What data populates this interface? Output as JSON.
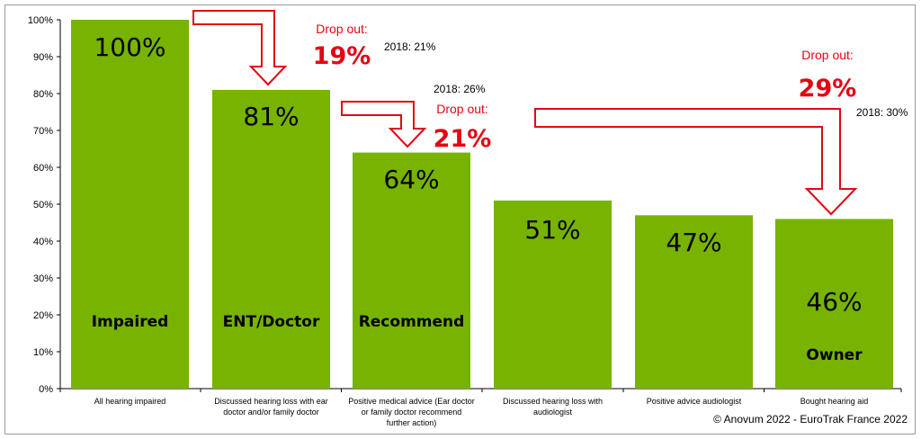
{
  "chart_data": {
    "type": "bar",
    "categories": [
      "All hearing impaired",
      "Discussed hearing loss with ear doctor and/or family doctor",
      "Positive medical advice (Ear doctor or family doctor recommend further action)",
      "Discussed hearing loss with audiologist",
      "Positive advice audiologist",
      "Bought hearing aid"
    ],
    "category_lines": [
      [
        "All hearing impaired"
      ],
      [
        "Discussed hearing loss with ear",
        "doctor and/or family doctor"
      ],
      [
        "Positive medical advice (Ear doctor",
        "or family doctor recommend",
        "further action)"
      ],
      [
        "Discussed hearing loss with",
        "audiologist"
      ],
      [
        "Positive advice audiologist"
      ],
      [
        "Bought hearing aid"
      ]
    ],
    "values": [
      100,
      81,
      64,
      51,
      47,
      46
    ],
    "value_labels": [
      "100%",
      "81%",
      "64%",
      "51%",
      "47%",
      "46%"
    ],
    "bar_tags": [
      "Impaired",
      "ENT/Doctor",
      "Recommend",
      "",
      "",
      "Owner"
    ],
    "ylim": [
      0,
      100
    ],
    "yticks": [
      "0%",
      "10%",
      "20%",
      "30%",
      "40%",
      "50%",
      "60%",
      "70%",
      "80%",
      "90%",
      "100%"
    ],
    "bar_color": "#77b300",
    "annotation_color": "#e30613",
    "annotations": [
      {
        "from": 0,
        "to": 1,
        "label": "Drop out:",
        "value": "19%",
        "previous": "2018: 21%"
      },
      {
        "from": 1,
        "to": 2,
        "label": "Drop out:",
        "value": "21%",
        "previous": "2018: 26%"
      },
      {
        "from": 2,
        "to": 5,
        "label": "Drop out:",
        "value": "29%",
        "previous": "2018: 30%"
      }
    ],
    "credit": "© Anovum 2022 - EuroTrak France 2022"
  }
}
